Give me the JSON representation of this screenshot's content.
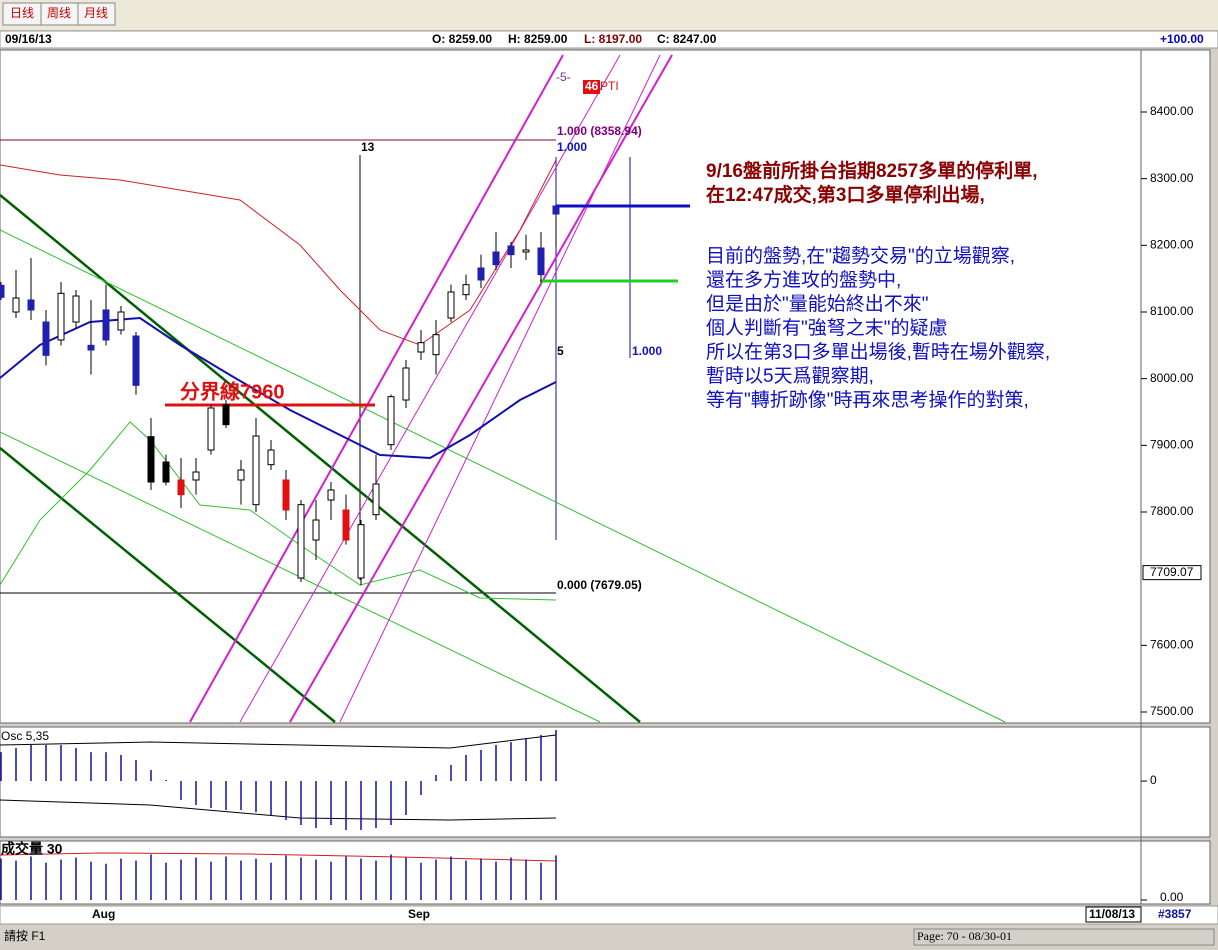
{
  "toolbar": {
    "buttons": [
      "日线",
      "周线",
      "月线"
    ]
  },
  "header": {
    "date": "09/16/13",
    "open": "O: 8259.00",
    "high": "H: 8259.00",
    "low": "L: 8197.00",
    "close": "C: 8247.00",
    "change": "+100.00"
  },
  "price_panel": {
    "ylim": [
      7485,
      8490
    ],
    "yticks": [
      {
        "value": 8400,
        "label": "8400.00"
      },
      {
        "value": 8300,
        "label": "8300.00"
      },
      {
        "value": 8200,
        "label": "8200.00"
      },
      {
        "value": 8100,
        "label": "8100.00"
      },
      {
        "value": 8000,
        "label": "8000.00"
      },
      {
        "value": 7900,
        "label": "7900.00"
      },
      {
        "value": 7800,
        "label": "7800.00"
      },
      {
        "value": 7600,
        "label": "7600.00"
      },
      {
        "value": 7500,
        "label": "7500.00"
      }
    ],
    "last_price": {
      "value": 7709.07,
      "label": "7709.07"
    },
    "candles": {
      "open": [
        8140,
        8100,
        8118,
        8085,
        8058,
        8085,
        8050,
        8103,
        8073,
        8064,
        7913,
        7875,
        7848,
        7848,
        7893,
        7961,
        7848,
        7811,
        7871,
        7848,
        7701,
        7758,
        7818,
        7803,
        7701,
        7796,
        7901,
        7968,
        8040,
        8036,
        8091,
        8126,
        8166,
        8190,
        8199,
        8190,
        8196,
        8259
      ],
      "high": [
        8145,
        8163,
        8181,
        8103,
        8145,
        8133,
        8118,
        8141,
        8109,
        8070,
        7941,
        7886,
        7881,
        7881,
        7961,
        7968,
        7878,
        7941,
        7908,
        7863,
        7818,
        7818,
        7845,
        7826,
        7788,
        7886,
        7976,
        8028,
        8073,
        8088,
        8141,
        8156,
        8186,
        8220,
        8205,
        8216,
        8220,
        8259
      ],
      "low": [
        8118,
        8091,
        8088,
        8020,
        8050,
        8076,
        8006,
        8050,
        8066,
        7976,
        7833,
        7840,
        7806,
        7826,
        7886,
        7926,
        7811,
        7800,
        7863,
        7788,
        7695,
        7728,
        7788,
        7751,
        7690,
        7788,
        7893,
        7956,
        8028,
        8006,
        8085,
        8118,
        8136,
        8163,
        8166,
        8178,
        8145,
        8197
      ],
      "close": [
        8122,
        8121,
        8103,
        8035,
        8128,
        8124,
        8043,
        8058,
        8100,
        7990,
        7845,
        7845,
        7826,
        7860,
        7956,
        7931,
        7863,
        7914,
        7893,
        7803,
        7811,
        7788,
        7833,
        7758,
        7781,
        7842,
        7973,
        8016,
        8054,
        8066,
        8130,
        8141,
        8148,
        8171,
        8186,
        8193,
        8156,
        8247
      ],
      "colors": [
        "#1f1fb0",
        "#ffffff",
        "#1f1fb0",
        "#1f1fb0",
        "#ffffff",
        "#ffffff",
        "#1f1fb0",
        "#1f1fb0",
        "#ffffff",
        "#1f1fb0",
        "#000000",
        "#000000",
        "#e01010",
        "#ffffff",
        "#ffffff",
        "#000000",
        "#ffffff",
        "#ffffff",
        "#ffffff",
        "#e01010",
        "#ffffff",
        "#ffffff",
        "#ffffff",
        "#e01010",
        "#ffffff",
        "#ffffff",
        "#ffffff",
        "#ffffff",
        "#ffffff",
        "#ffffff",
        "#ffffff",
        "#ffffff",
        "#1f1fb0",
        "#1f1fb0",
        "#1f1fb0",
        "#ffffff",
        "#1f1fb0",
        "#1f1fb0"
      ]
    },
    "annotations": {
      "minus5": "-5-",
      "pti_num": "46",
      "pti": "PTI",
      "fib_top": "1.000 (8358.94)",
      "fib_top2": "1.000",
      "count13": "13",
      "count5": "5",
      "fib_right": "1.000",
      "fib_bottom": "0.000 (7679.05)",
      "divider": "分界線7960"
    },
    "notes": {
      "first": [
        "9/16盤前所掛台指期8257多單的停利單,",
        "在12:47成交,第3口多單停利出場,"
      ],
      "second": [
        "目前的盤勢,在\"趨勢交易\"的立場觀察,",
        "還在多方進攻的盤勢中,",
        "但是由於\"量能始終出不來\"",
        "個人判斷有\"強弩之末\"的疑慮",
        "所以在第3口多單出場後,暫時在場外觀察,",
        "暫時以5天爲觀察期,",
        "等有\"轉折跡像\"時再來思考操作的對策,"
      ]
    }
  },
  "osc_panel": {
    "title": "Osc 5,35",
    "ylim": [
      -248,
      244
    ],
    "yticks": [
      0
    ],
    "values": [
      133,
      152,
      166,
      166,
      166,
      152,
      133,
      133,
      120,
      97,
      51,
      5,
      -87,
      -110,
      -124,
      -133,
      -133,
      -143,
      -156,
      -179,
      -202,
      -216,
      -202,
      -225,
      -225,
      -216,
      -202,
      -156,
      -64,
      28,
      74,
      120,
      143,
      166,
      179,
      198,
      212,
      235
    ]
  },
  "volume_panel": {
    "title": "成交量 30",
    "ylim": [
      0,
      55
    ],
    "yticks": [
      {
        "value": 0,
        "label": "0.00"
      }
    ],
    "values": [
      40,
      38,
      42,
      36,
      39,
      41,
      37,
      35,
      40,
      38,
      44,
      36,
      39,
      41,
      37,
      42,
      38,
      40,
      36,
      43,
      41,
      39,
      37,
      42,
      40,
      38,
      44,
      41,
      36,
      39,
      42,
      38,
      40,
      37,
      41,
      39,
      36,
      43
    ]
  },
  "date_axis": {
    "labels": [
      "Aug",
      "Sep"
    ],
    "cursor_date": "11/08/13",
    "bar_count": "#3857"
  },
  "status_bar": {
    "help": "請按 F1",
    "page": "Page: 70 - 08/30-01"
  }
}
